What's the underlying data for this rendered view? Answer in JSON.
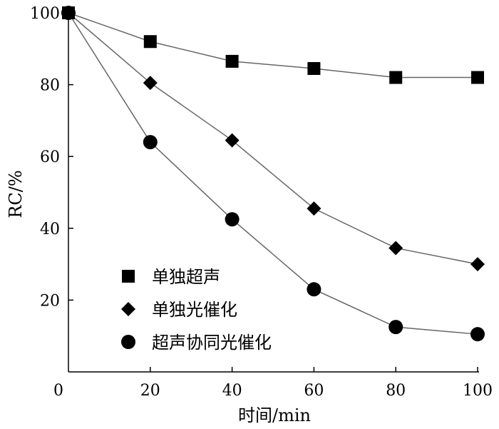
{
  "chart_data": {
    "type": "line",
    "x": [
      0,
      20,
      40,
      60,
      80,
      100
    ],
    "series": [
      {
        "name": "单独超声",
        "marker": "square",
        "values": [
          100,
          92,
          86.5,
          84.5,
          82,
          82
        ]
      },
      {
        "name": "单独光催化",
        "marker": "diamond",
        "values": [
          100,
          80.5,
          64.5,
          45.5,
          34.5,
          30
        ]
      },
      {
        "name": "超声协同光催化",
        "marker": "circle",
        "values": [
          100,
          64,
          42.5,
          23,
          12.5,
          10.5
        ]
      }
    ],
    "xlabel": "时间/min",
    "ylabel": "RC/%",
    "xlim": [
      0,
      100
    ],
    "ylim": [
      0,
      100
    ],
    "xticks": [
      "0",
      "20",
      "40",
      "60",
      "80",
      "100"
    ],
    "yticks": [
      "20",
      "40",
      "60",
      "80",
      "100"
    ],
    "grid": false,
    "legend_position": "bottom-left",
    "line_color": "#666666",
    "marker_color": "#000000"
  }
}
